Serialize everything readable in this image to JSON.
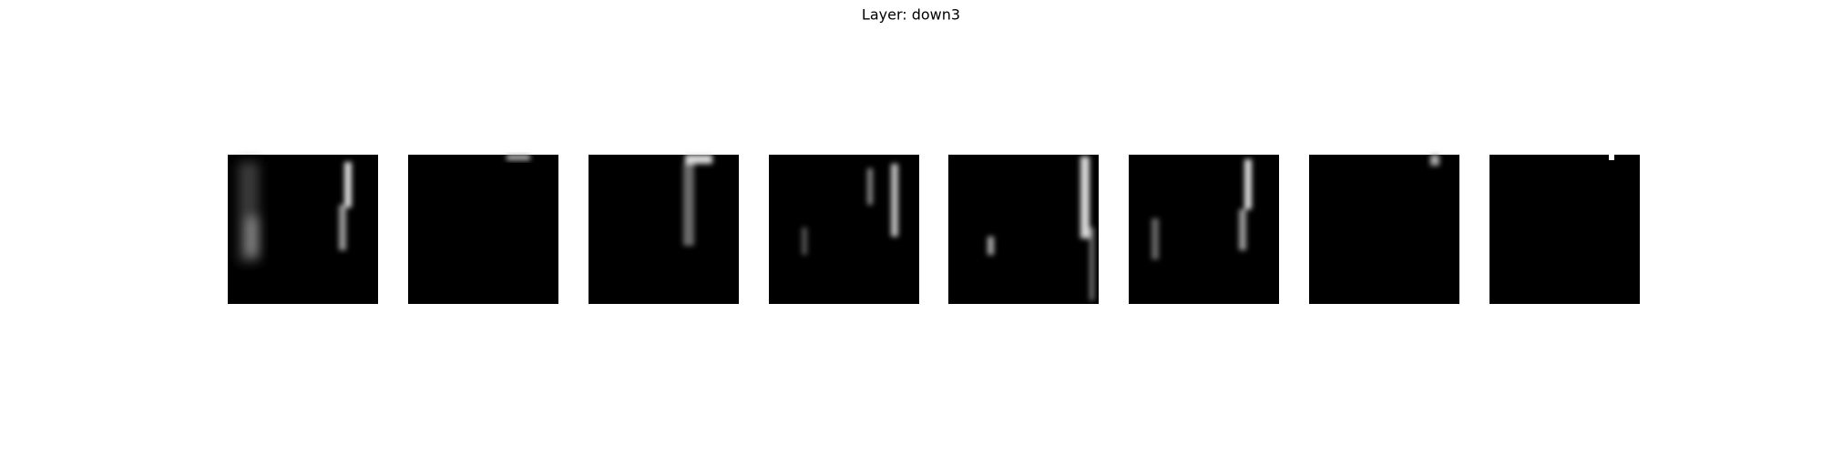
{
  "title": "Layer: down3"
}
